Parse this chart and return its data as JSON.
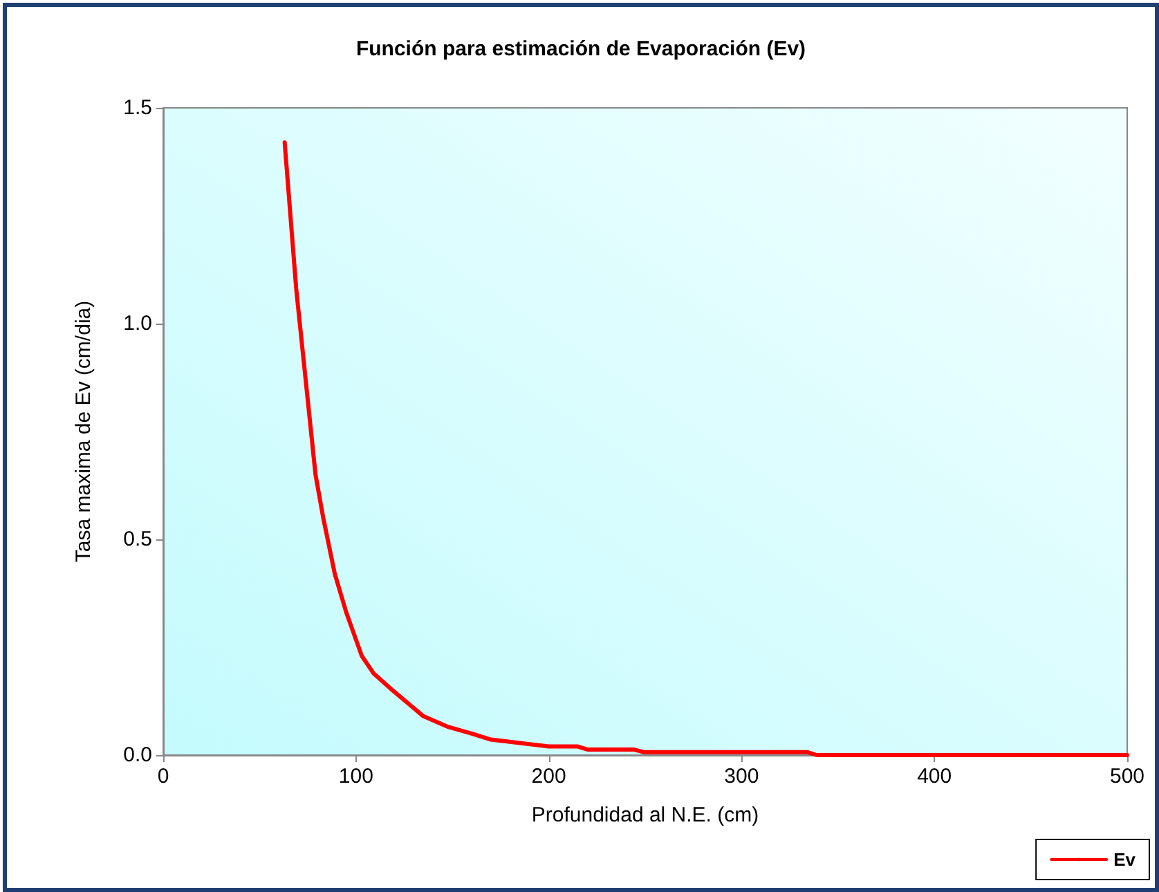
{
  "chart_data": {
    "type": "line",
    "title": "Función para estimación de Evaporación (Ev)",
    "xlabel": "Profundidad al N.E. (cm)",
    "ylabel": "Tasa maxima de Ev (cm/dia)",
    "x": [
      63,
      69,
      79,
      83,
      89,
      95,
      103,
      109,
      119,
      135,
      148,
      160,
      170,
      200,
      215,
      220,
      244,
      249,
      334,
      339,
      500
    ],
    "series": [
      {
        "name": "Ev",
        "color": "#ff0000",
        "values": [
          1.42,
          1.08,
          0.65,
          0.55,
          0.42,
          0.33,
          0.23,
          0.19,
          0.15,
          0.09,
          0.065,
          0.05,
          0.036,
          0.02,
          0.02,
          0.013,
          0.013,
          0.007,
          0.007,
          0,
          0
        ]
      }
    ],
    "xlim": [
      0,
      500
    ],
    "xticks": [
      0,
      100,
      200,
      300,
      400,
      500
    ],
    "ylim": [
      0,
      1.5
    ],
    "yticks": [
      {
        "value": 0,
        "label": "0.0"
      },
      {
        "value": 0.5,
        "label": "0.5"
      },
      {
        "value": 1,
        "label": "1.0"
      },
      {
        "value": 1.5,
        "label": "1.5"
      }
    ],
    "grid": false,
    "legend": "bottom right",
    "marker": "none",
    "line_style": "solid"
  }
}
